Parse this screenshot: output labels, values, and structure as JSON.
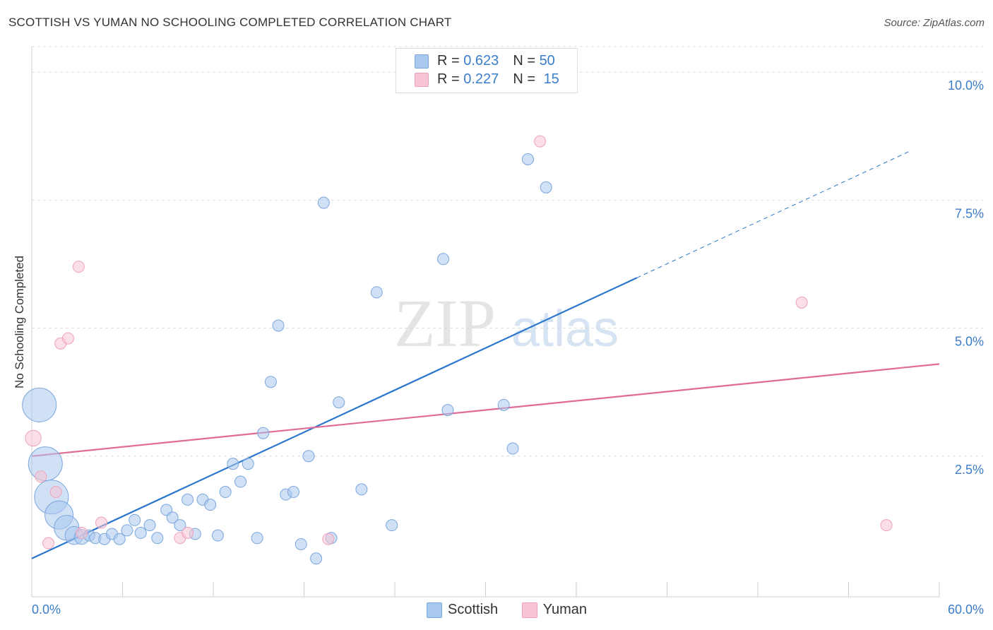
{
  "title": "SCOTTISH VS YUMAN NO SCHOOLING COMPLETED CORRELATION CHART",
  "source": "Source: ZipAtlas.com",
  "watermark": {
    "zip": "ZIP",
    "atlas": "atlas"
  },
  "legend": {
    "rows": [
      {
        "r_label": "R = ",
        "r_value": "0.623",
        "n_label": "N = ",
        "n_value": "50",
        "color": "#a9c8ee",
        "border": "#7aa6dd"
      },
      {
        "r_label": "R = ",
        "r_value": "0.227",
        "n_label": "N = ",
        "n_value": "15",
        "color": "#f7c5d3",
        "border": "#eea2ba"
      }
    ]
  },
  "bottom_legend": [
    "Scottish",
    "Yuman"
  ],
  "colors": {
    "scottish": "#2a76cc",
    "yuman": "#e06a98",
    "scottish_fill": "#a9c8ee",
    "yuman_fill": "#f7c5d3",
    "axis_label": "#3a7dc9"
  },
  "chart_data": {
    "type": "scatter",
    "title": "SCOTTISH VS YUMAN NO SCHOOLING COMPLETED CORRELATION CHART",
    "xlabel": "",
    "ylabel": "No Schooling Completed",
    "xlim": [
      0,
      60
    ],
    "ylim": [
      0,
      10.5
    ],
    "x_tick_labels": [
      "0.0%",
      "60.0%"
    ],
    "y_ticks": [
      2.5,
      5.0,
      7.5,
      10.0
    ],
    "y_tick_labels": [
      "2.5%",
      "5.0%",
      "7.5%",
      "10.0%"
    ],
    "grid": true,
    "legend_position": "top-center",
    "series": [
      {
        "name": "Scottish",
        "points": [
          [
            0.5,
            3.5,
            3
          ],
          [
            0.9,
            2.35,
            3
          ],
          [
            1.3,
            1.7,
            3
          ],
          [
            1.8,
            1.35,
            2.5
          ],
          [
            2.3,
            1.1,
            2.2
          ],
          [
            2.8,
            0.95,
            1.6
          ],
          [
            3.3,
            0.92,
            1.3
          ],
          [
            3.8,
            0.95,
            1
          ],
          [
            4.2,
            0.9,
            1
          ],
          [
            4.8,
            0.88,
            1
          ],
          [
            5.3,
            0.98,
            1
          ],
          [
            5.8,
            0.88,
            1
          ],
          [
            6.3,
            1.05,
            1
          ],
          [
            6.8,
            1.25,
            1
          ],
          [
            7.2,
            1.0,
            1
          ],
          [
            7.8,
            1.15,
            1
          ],
          [
            8.3,
            0.9,
            1
          ],
          [
            8.9,
            1.45,
            1
          ],
          [
            9.3,
            1.3,
            1
          ],
          [
            9.8,
            1.15,
            1
          ],
          [
            10.3,
            1.65,
            1
          ],
          [
            10.8,
            0.98,
            1
          ],
          [
            11.3,
            1.65,
            1
          ],
          [
            11.8,
            1.55,
            1
          ],
          [
            12.3,
            0.95,
            1
          ],
          [
            12.8,
            1.8,
            1
          ],
          [
            13.3,
            2.35,
            1
          ],
          [
            13.8,
            2.0,
            1
          ],
          [
            14.3,
            2.35,
            1
          ],
          [
            14.9,
            0.9,
            1
          ],
          [
            15.3,
            2.95,
            1
          ],
          [
            15.8,
            3.95,
            1
          ],
          [
            16.3,
            5.05,
            1
          ],
          [
            16.8,
            1.75,
            1
          ],
          [
            17.3,
            1.8,
            1
          ],
          [
            17.8,
            0.78,
            1
          ],
          [
            18.3,
            2.5,
            1
          ],
          [
            18.8,
            0.5,
            1
          ],
          [
            19.3,
            7.45,
            1
          ],
          [
            19.8,
            0.9,
            1
          ],
          [
            20.3,
            3.55,
            1
          ],
          [
            21.8,
            1.85,
            1
          ],
          [
            22.8,
            5.7,
            1
          ],
          [
            23.8,
            1.15,
            1
          ],
          [
            27.2,
            6.35,
            1
          ],
          [
            27.5,
            3.4,
            1
          ],
          [
            31.2,
            3.5,
            1
          ],
          [
            31.8,
            2.65,
            1
          ],
          [
            32.8,
            8.3,
            1
          ],
          [
            34.0,
            7.75,
            1
          ]
        ],
        "trendline": {
          "x_start": 0,
          "y_start": 0.5,
          "x_solid_end": 40,
          "x_end": 58,
          "y_end": 8.45
        }
      },
      {
        "name": "Yuman",
        "points": [
          [
            0.1,
            2.85,
            1.4
          ],
          [
            0.6,
            2.1,
            1
          ],
          [
            1.1,
            0.8,
            1
          ],
          [
            1.9,
            4.7,
            1
          ],
          [
            2.4,
            4.8,
            1
          ],
          [
            1.6,
            1.8,
            1
          ],
          [
            3.1,
            6.2,
            1
          ],
          [
            3.3,
            1.0,
            1
          ],
          [
            4.6,
            1.2,
            1
          ],
          [
            9.8,
            0.9,
            1
          ],
          [
            10.3,
            1.0,
            1
          ],
          [
            19.6,
            0.88,
            1
          ],
          [
            33.6,
            8.65,
            1
          ],
          [
            50.9,
            5.5,
            1
          ],
          [
            56.5,
            1.15,
            1
          ]
        ],
        "trendline": {
          "x_start": 0,
          "y_start": 2.5,
          "x_end": 60,
          "y_end": 4.3
        }
      }
    ]
  }
}
